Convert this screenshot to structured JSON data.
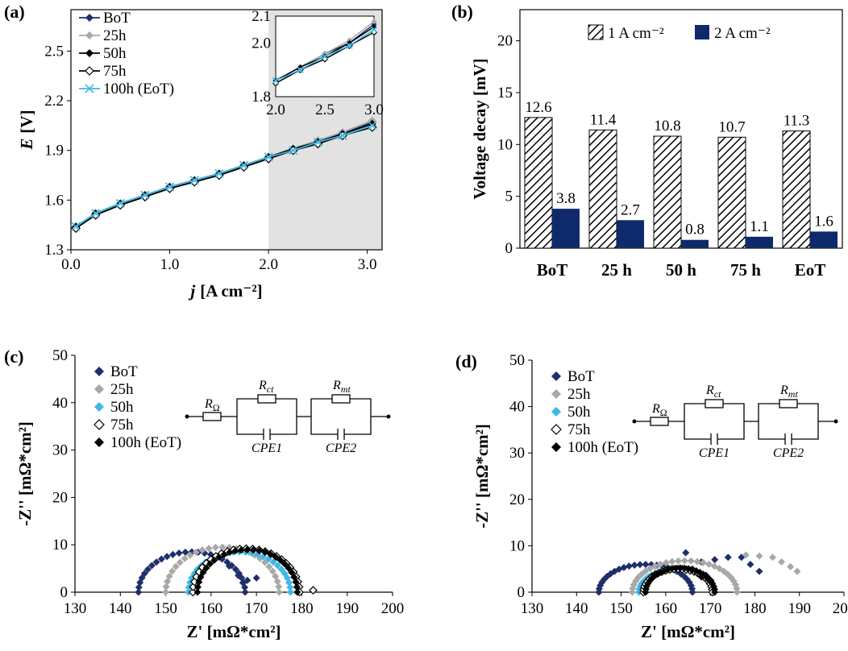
{
  "chart_data": [
    {
      "panel": "(a)",
      "type": "line",
      "xlabel_var": "j",
      "xlabel_unit": "[A cm⁻²]",
      "ylabel_var": "E",
      "ylabel_unit": "[V]",
      "xlim": [
        0,
        3.15
      ],
      "ylim": [
        1.3,
        2.75
      ],
      "xticks": [
        "0.0",
        "1.0",
        "2.0",
        "3.0"
      ],
      "yticks": [
        "1.3",
        "1.6",
        "1.9",
        "2.2",
        "2.5"
      ],
      "shade_range": [
        2.0,
        3.15
      ],
      "series": [
        {
          "name": "BoT",
          "color": "#1f2f6b",
          "marker": "diamond",
          "x": [
            0.05,
            0.25,
            0.5,
            0.75,
            1.0,
            1.25,
            1.5,
            1.75,
            2.0,
            2.25,
            2.5,
            2.75,
            3.05
          ],
          "y": [
            1.44,
            1.52,
            1.58,
            1.63,
            1.68,
            1.72,
            1.76,
            1.81,
            1.86,
            1.91,
            1.96,
            2.0,
            2.07
          ]
        },
        {
          "name": "25h",
          "color": "#a8a8a8",
          "marker": "diamond",
          "x": [
            0.05,
            0.25,
            0.5,
            0.75,
            1.0,
            1.25,
            1.5,
            1.75,
            2.0,
            2.25,
            2.5,
            2.75,
            3.05
          ],
          "y": [
            1.44,
            1.52,
            1.58,
            1.63,
            1.68,
            1.72,
            1.76,
            1.81,
            1.86,
            1.91,
            1.96,
            2.01,
            2.08
          ]
        },
        {
          "name": "50h",
          "color": "#000000",
          "marker": "diamond",
          "x": [
            0.05,
            0.25,
            0.5,
            0.75,
            1.0,
            1.25,
            1.5,
            1.75,
            2.0,
            2.25,
            2.5,
            2.75,
            3.05
          ],
          "y": [
            1.44,
            1.52,
            1.58,
            1.63,
            1.68,
            1.72,
            1.76,
            1.81,
            1.86,
            1.91,
            1.95,
            2.0,
            2.06
          ]
        },
        {
          "name": "75h",
          "color": "#000000",
          "marker": "diamond-open",
          "x": [
            0.05,
            0.25,
            0.5,
            0.75,
            1.0,
            1.25,
            1.5,
            1.75,
            2.0,
            2.25,
            2.5,
            2.75,
            3.05
          ],
          "y": [
            1.43,
            1.51,
            1.57,
            1.62,
            1.67,
            1.71,
            1.75,
            1.8,
            1.85,
            1.9,
            1.94,
            1.99,
            2.04
          ]
        },
        {
          "name": "100h (EoT)",
          "color": "#3fb8e6",
          "marker": "x",
          "x": [
            0.05,
            0.25,
            0.5,
            0.75,
            1.0,
            1.25,
            1.5,
            1.75,
            2.0,
            2.25,
            2.5,
            2.75,
            3.05
          ],
          "y": [
            1.44,
            1.52,
            1.58,
            1.63,
            1.68,
            1.72,
            1.76,
            1.81,
            1.86,
            1.9,
            1.95,
            1.99,
            2.05
          ]
        }
      ],
      "inset": {
        "xlim": [
          2.0,
          3.0
        ],
        "ylim": [
          1.8,
          2.1
        ],
        "xticks": [
          "2.0",
          "2.5",
          "3.0"
        ],
        "yticks": [
          "1.8",
          "2.0",
          "2.1"
        ],
        "ytick_values": [
          1.8,
          2.0,
          2.1
        ]
      }
    },
    {
      "panel": "(b)",
      "type": "bar",
      "ylabel": "Voltage decay [mV]",
      "ylim": [
        0,
        23
      ],
      "yticks": [
        "0",
        "5",
        "10",
        "15",
        "20"
      ],
      "categories": [
        "BoT",
        "25 h",
        "50 h",
        "75 h",
        "EoT"
      ],
      "series": [
        {
          "name": "1 A cm⁻²",
          "pattern": "hatch",
          "values": [
            12.6,
            11.4,
            10.8,
            10.7,
            11.3
          ],
          "labels": [
            "12.6",
            "11.4",
            "10.8",
            "10.7",
            "11.3"
          ]
        },
        {
          "name": "2 A cm⁻²",
          "color": "#0f2a6b",
          "values": [
            3.8,
            2.7,
            0.8,
            1.1,
            1.6
          ],
          "labels": [
            "3.8",
            "2.7",
            "0.8",
            "1.1",
            "1.6"
          ]
        }
      ]
    },
    {
      "panel": "(c)",
      "type": "scatter",
      "xlabel": "Z' [mΩ*cm²]",
      "ylabel": "-Z'' [mΩ*cm²]",
      "xlim": [
        130,
        200
      ],
      "ylim": [
        0,
        50
      ],
      "xticks": [
        "130",
        "140",
        "150",
        "160",
        "170",
        "180",
        "190",
        "200"
      ],
      "yticks": [
        "0",
        "10",
        "20",
        "30",
        "40",
        "50"
      ],
      "series": [
        {
          "name": "BoT",
          "color": "#1f2f6b",
          "marker": "diamond",
          "arcs": [
            [
              144,
              167.5,
              8.5
            ]
          ],
          "extra": [
            [
              164,
              5.5
            ],
            [
              166,
              3.5
            ],
            [
              168,
              2.5
            ],
            [
              170,
              3.0
            ],
            [
              167,
              2.0
            ]
          ]
        },
        {
          "name": "25h",
          "color": "#a8a8a8",
          "marker": "diamond",
          "arcs": [
            [
              150,
              175,
              9.5
            ]
          ],
          "extra": []
        },
        {
          "name": "50h",
          "color": "#3fb8e6",
          "marker": "diamond",
          "arcs": [
            [
              155,
              177.5,
              8.5
            ]
          ],
          "extra": []
        },
        {
          "name": "75h",
          "color": "#000000",
          "marker": "diamond-open",
          "arcs": [
            [
              156,
              179.5,
              9.2
            ]
          ],
          "extra": [
            [
              182.5,
              0.4
            ]
          ]
        },
        {
          "name": "100h (EoT)",
          "color": "#000000",
          "marker": "diamond",
          "arcs": [
            [
              157,
              179,
              9.0
            ]
          ],
          "extra": []
        }
      ],
      "circuit": {
        "r1": "R",
        "r1_sub": "Ω",
        "r2": "R",
        "r2_sub": "ct",
        "r3": "R",
        "r3_sub": "mt",
        "c1": "CPE1",
        "c2": "CPE2"
      }
    },
    {
      "panel": "(d)",
      "type": "scatter",
      "xlabel": "Z' [mΩ*cm²]",
      "ylabel": "-Z'' [mΩ*cm²]",
      "xlim": [
        130,
        200
      ],
      "ylim": [
        0,
        50
      ],
      "xticks": [
        "130",
        "140",
        "150",
        "160",
        "170",
        "180",
        "190",
        "200"
      ],
      "yticks": [
        "0",
        "10",
        "20",
        "30",
        "40",
        "50"
      ],
      "series": [
        {
          "name": "BoT",
          "color": "#1f2f6b",
          "marker": "diamond",
          "arcs": [
            [
              145,
              166,
              6.0
            ]
          ],
          "extra": [
            [
              164.5,
              8.5
            ],
            [
              168,
              6.5
            ],
            [
              171,
              7.0
            ],
            [
              174,
              7.5
            ],
            [
              177,
              7.5
            ],
            [
              179,
              6.0
            ],
            [
              181,
              4.5
            ],
            [
              166,
              5.0
            ]
          ]
        },
        {
          "name": "25h",
          "color": "#a8a8a8",
          "marker": "diamond",
          "arcs": [
            [
              152.5,
              176,
              6.8
            ]
          ],
          "extra": [
            [
              178,
              8.0
            ],
            [
              181,
              7.8
            ],
            [
              184,
              7.5
            ],
            [
              186,
              6.5
            ],
            [
              188,
              5.5
            ],
            [
              189.5,
              4.5
            ]
          ]
        },
        {
          "name": "50h",
          "color": "#3fb8e6",
          "marker": "diamond",
          "arcs": [
            [
              154,
              171,
              5.0
            ]
          ],
          "extra": []
        },
        {
          "name": "75h",
          "color": "#000000",
          "marker": "diamond-open",
          "arcs": [
            [
              155,
              170.5,
              5.0
            ]
          ],
          "extra": [
            [
              169,
              3.5
            ],
            [
              170,
              2.5
            ]
          ]
        },
        {
          "name": "100h (EoT)",
          "color": "#000000",
          "marker": "diamond",
          "arcs": [
            [
              155.5,
              171,
              5.2
            ]
          ],
          "extra": [
            [
              168,
              3.3
            ],
            [
              169.5,
              2.8
            ]
          ]
        }
      ],
      "circuit": {
        "r1": "R",
        "r1_sub": "Ω",
        "r2": "R",
        "r2_sub": "ct",
        "r3": "R",
        "r3_sub": "mt",
        "c1": "CPE1",
        "c2": "CPE2"
      }
    }
  ]
}
